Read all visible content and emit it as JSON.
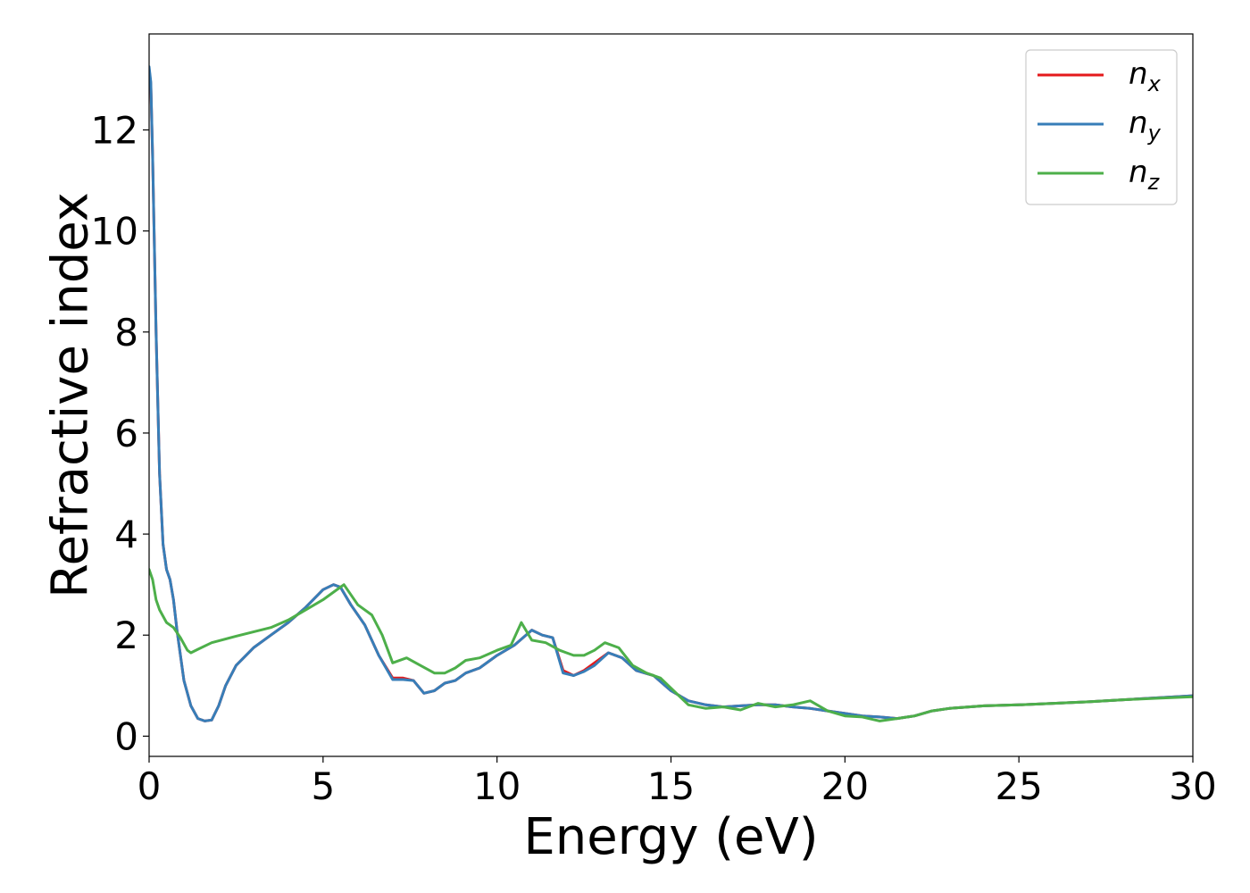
{
  "chart_data": {
    "type": "line",
    "xlabel": "Energy (eV)",
    "ylabel": "Refractive index",
    "xlim": [
      0,
      30
    ],
    "ylim": [
      -0.4,
      13.9
    ],
    "xticks": [
      "0",
      "5",
      "10",
      "15",
      "20",
      "25",
      "30"
    ],
    "yticks": [
      "0",
      "2",
      "4",
      "6",
      "8",
      "10",
      "12"
    ],
    "grid": false,
    "legend_position": "top-right",
    "series": [
      {
        "name": "n_x",
        "legend_main": "n",
        "legend_sub": "x",
        "color": "#e41a1c",
        "x": [
          0,
          0.05,
          0.1,
          0.2,
          0.3,
          0.4,
          0.5,
          0.6,
          0.7,
          0.8,
          0.9,
          1.0,
          1.2,
          1.4,
          1.6,
          1.8,
          2.0,
          2.2,
          2.5,
          3.0,
          3.5,
          4.0,
          4.5,
          5.0,
          5.3,
          5.5,
          5.8,
          6.2,
          6.6,
          7.0,
          7.3,
          7.6,
          7.9,
          8.2,
          8.5,
          8.8,
          9.1,
          9.5,
          10.0,
          10.5,
          11.0,
          11.3,
          11.6,
          11.9,
          12.2,
          12.5,
          12.8,
          13.2,
          13.6,
          14.0,
          14.5,
          15.0,
          15.5,
          16.0,
          16.5,
          17.0,
          17.5,
          18.0,
          18.5,
          19.0,
          19.5,
          20.0,
          20.5,
          21.0,
          21.5,
          22.0,
          22.5,
          23.0,
          24.0,
          25.0,
          26.0,
          27.0,
          28.0,
          29.0,
          30.0
        ],
        "y": [
          13.2,
          12.9,
          11.5,
          8.0,
          5.2,
          3.8,
          3.3,
          3.1,
          2.7,
          2.1,
          1.6,
          1.1,
          0.6,
          0.35,
          0.3,
          0.32,
          0.6,
          1.0,
          1.4,
          1.75,
          2.0,
          2.25,
          2.55,
          2.9,
          3.0,
          2.95,
          2.6,
          2.2,
          1.6,
          1.15,
          1.15,
          1.1,
          0.85,
          0.9,
          1.05,
          1.1,
          1.25,
          1.35,
          1.6,
          1.8,
          2.1,
          2.0,
          1.95,
          1.3,
          1.2,
          1.3,
          1.45,
          1.65,
          1.55,
          1.3,
          1.2,
          0.9,
          0.7,
          0.62,
          0.58,
          0.6,
          0.62,
          0.62,
          0.58,
          0.55,
          0.5,
          0.45,
          0.4,
          0.38,
          0.35,
          0.4,
          0.5,
          0.55,
          0.6,
          0.62,
          0.65,
          0.68,
          0.72,
          0.76,
          0.8
        ]
      },
      {
        "name": "n_y",
        "legend_main": "n",
        "legend_sub": "y",
        "color": "#377eb8",
        "x": [
          0,
          0.05,
          0.1,
          0.2,
          0.3,
          0.4,
          0.5,
          0.6,
          0.7,
          0.8,
          0.9,
          1.0,
          1.2,
          1.4,
          1.6,
          1.8,
          2.0,
          2.2,
          2.5,
          3.0,
          3.5,
          4.0,
          4.5,
          5.0,
          5.3,
          5.5,
          5.8,
          6.2,
          6.6,
          7.0,
          7.3,
          7.6,
          7.9,
          8.2,
          8.5,
          8.8,
          9.1,
          9.5,
          10.0,
          10.5,
          11.0,
          11.3,
          11.6,
          11.9,
          12.2,
          12.5,
          12.8,
          13.2,
          13.6,
          14.0,
          14.5,
          15.0,
          15.5,
          16.0,
          16.5,
          17.0,
          17.5,
          18.0,
          18.5,
          19.0,
          19.5,
          20.0,
          20.5,
          21.0,
          21.5,
          22.0,
          22.5,
          23.0,
          24.0,
          25.0,
          26.0,
          27.0,
          28.0,
          29.0,
          30.0
        ],
        "y": [
          13.25,
          12.95,
          11.5,
          8.0,
          5.2,
          3.8,
          3.3,
          3.1,
          2.7,
          2.1,
          1.6,
          1.1,
          0.6,
          0.35,
          0.3,
          0.32,
          0.6,
          1.0,
          1.4,
          1.75,
          2.0,
          2.25,
          2.55,
          2.9,
          3.0,
          2.95,
          2.6,
          2.2,
          1.6,
          1.12,
          1.12,
          1.1,
          0.85,
          0.9,
          1.05,
          1.1,
          1.25,
          1.35,
          1.6,
          1.8,
          2.1,
          2.0,
          1.95,
          1.25,
          1.2,
          1.28,
          1.4,
          1.65,
          1.55,
          1.3,
          1.2,
          0.9,
          0.7,
          0.62,
          0.58,
          0.6,
          0.62,
          0.62,
          0.58,
          0.55,
          0.5,
          0.45,
          0.4,
          0.38,
          0.35,
          0.4,
          0.5,
          0.55,
          0.6,
          0.62,
          0.65,
          0.68,
          0.72,
          0.76,
          0.8
        ]
      },
      {
        "name": "n_z",
        "legend_main": "n",
        "legend_sub": "z",
        "color": "#4daf4a",
        "x": [
          0,
          0.1,
          0.2,
          0.3,
          0.5,
          0.7,
          0.9,
          1.1,
          1.2,
          1.4,
          1.8,
          2.5,
          3.5,
          4.0,
          4.5,
          5.0,
          5.3,
          5.6,
          6.0,
          6.4,
          6.7,
          7.0,
          7.4,
          7.8,
          8.2,
          8.5,
          8.8,
          9.1,
          9.5,
          10.0,
          10.4,
          10.7,
          11.0,
          11.4,
          11.8,
          12.2,
          12.5,
          12.8,
          13.1,
          13.5,
          13.9,
          14.3,
          14.7,
          15.0,
          15.5,
          16.0,
          16.5,
          17.0,
          17.5,
          18.0,
          18.5,
          19.0,
          19.5,
          20.0,
          20.5,
          21.0,
          21.5,
          22.0,
          22.5,
          23.0,
          24.0,
          25.0,
          26.0,
          27.0,
          28.0,
          29.0,
          30.0
        ],
        "y": [
          3.3,
          3.1,
          2.7,
          2.5,
          2.25,
          2.15,
          1.95,
          1.7,
          1.65,
          1.72,
          1.85,
          1.98,
          2.15,
          2.3,
          2.5,
          2.7,
          2.85,
          3.0,
          2.6,
          2.4,
          2.0,
          1.45,
          1.55,
          1.4,
          1.25,
          1.25,
          1.35,
          1.5,
          1.55,
          1.7,
          1.8,
          2.25,
          1.9,
          1.85,
          1.7,
          1.6,
          1.6,
          1.7,
          1.85,
          1.75,
          1.4,
          1.25,
          1.15,
          0.95,
          0.62,
          0.55,
          0.58,
          0.52,
          0.65,
          0.58,
          0.62,
          0.7,
          0.5,
          0.4,
          0.38,
          0.3,
          0.35,
          0.4,
          0.5,
          0.55,
          0.6,
          0.62,
          0.65,
          0.68,
          0.72,
          0.75,
          0.78
        ]
      }
    ]
  }
}
